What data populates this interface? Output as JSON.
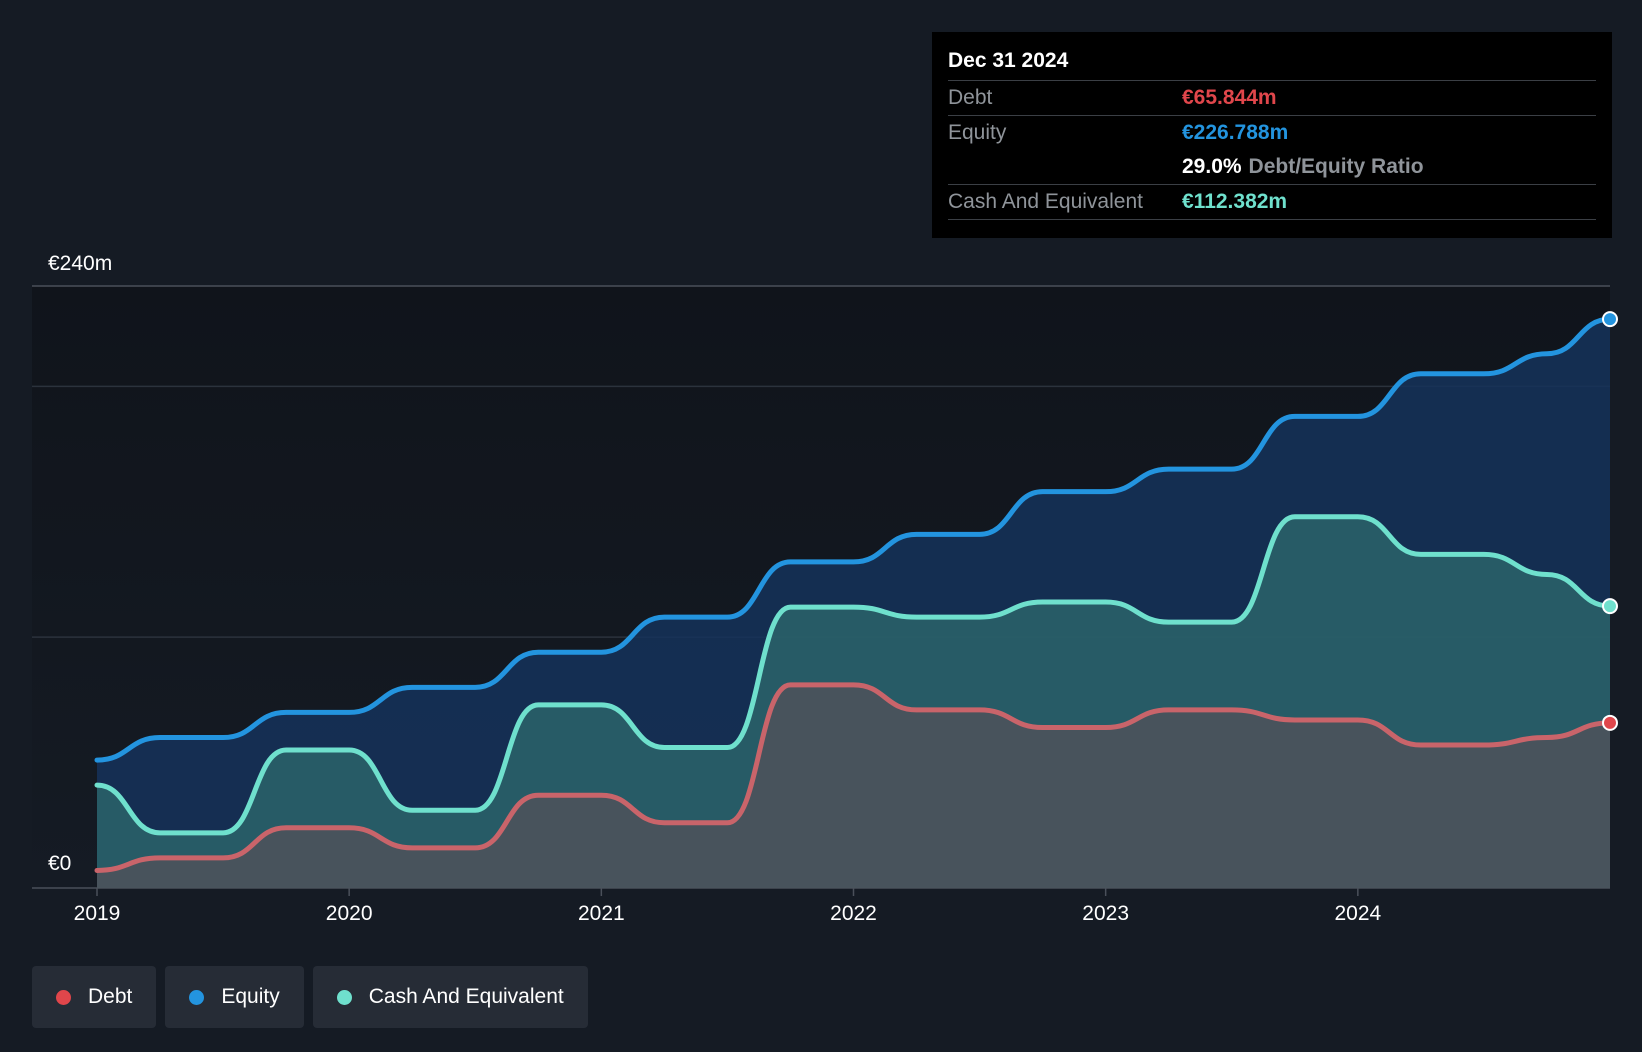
{
  "chart_data": {
    "type": "area",
    "y_top_label": "€240m",
    "y_bottom_label": "€0",
    "ylim": [
      0,
      240
    ],
    "xlim": [
      2019.0,
      2025.0
    ],
    "x_ticks": [
      "2019",
      "2020",
      "2021",
      "2022",
      "2023",
      "2024"
    ],
    "grid": true,
    "series": [
      {
        "name": "Debt",
        "color": "#e0464b",
        "line_color": "#c9646a",
        "x": [
          2019.0,
          2019.25,
          2019.5,
          2019.75,
          2020.0,
          2020.25,
          2020.5,
          2020.75,
          2021.0,
          2021.25,
          2021.5,
          2021.75,
          2022.0,
          2022.25,
          2022.5,
          2022.75,
          2023.0,
          2023.25,
          2023.5,
          2023.75,
          2024.0,
          2024.25,
          2024.5,
          2024.75,
          2025.0
        ],
        "values": [
          7,
          12,
          12,
          24,
          24,
          16,
          16,
          37,
          37,
          26,
          26,
          81,
          81,
          71,
          71,
          64,
          64,
          71,
          71,
          67,
          67,
          57,
          57,
          60,
          65.844
        ]
      },
      {
        "name": "Equity",
        "color": "#2394df",
        "line_color": "#2394df",
        "x": [
          2019.0,
          2019.25,
          2019.5,
          2019.75,
          2020.0,
          2020.25,
          2020.5,
          2020.75,
          2021.0,
          2021.25,
          2021.5,
          2021.75,
          2022.0,
          2022.25,
          2022.5,
          2022.75,
          2023.0,
          2023.25,
          2023.5,
          2023.75,
          2024.0,
          2024.25,
          2024.5,
          2024.75,
          2025.0
        ],
        "values": [
          51,
          60,
          60,
          70,
          70,
          80,
          80,
          94,
          94,
          108,
          108,
          130,
          130,
          141,
          141,
          158,
          158,
          167,
          167,
          188,
          188,
          205,
          205,
          213,
          226.788
        ]
      },
      {
        "name": "Cash And Equivalent",
        "color": "#6fe0cd",
        "line_color": "#6fe0cd",
        "x": [
          2019.0,
          2019.25,
          2019.5,
          2019.75,
          2020.0,
          2020.25,
          2020.5,
          2020.75,
          2021.0,
          2021.25,
          2021.5,
          2021.75,
          2022.0,
          2022.25,
          2022.5,
          2022.75,
          2023.0,
          2023.25,
          2023.5,
          2023.75,
          2024.0,
          2024.25,
          2024.5,
          2024.75,
          2025.0
        ],
        "values": [
          41,
          22,
          22,
          55,
          55,
          31,
          31,
          73,
          73,
          56,
          56,
          112,
          112,
          108,
          108,
          114,
          114,
          106,
          106,
          148,
          148,
          133,
          133,
          125,
          112.382
        ]
      }
    ]
  },
  "tooltip": {
    "date": "Dec 31 2024",
    "debt_label": "Debt",
    "debt_value": "€65.844m",
    "equity_label": "Equity",
    "equity_value": "€226.788m",
    "ratio_value": "29.0%",
    "ratio_label": "Debt/Equity Ratio",
    "cash_label": "Cash And Equivalent",
    "cash_value": "€112.382m",
    "debt_color": "#e0464b",
    "equity_color": "#2394df",
    "cash_color": "#6fe0cd"
  },
  "legend": [
    {
      "label": "Debt",
      "color": "#e0464b"
    },
    {
      "label": "Equity",
      "color": "#2394df"
    },
    {
      "label": "Cash And Equivalent",
      "color": "#6fe0cd"
    }
  ]
}
